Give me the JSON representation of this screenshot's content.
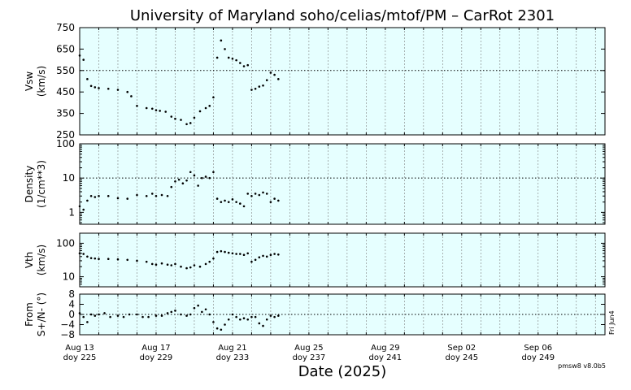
{
  "chart_data": {
    "type": "scatter",
    "title": "University of Maryland  soho/celias/mtof/PM – CarRot 2301",
    "xlabel": "Date (2025)",
    "footer_version": "pmsw8 v8.0b5",
    "side_note": "Fri Jun4",
    "x_range_day_of_year": [
      225,
      252.5
    ],
    "x_ticks": [
      {
        "doy": 225,
        "date": "Aug 13",
        "doy_label": "doy 225"
      },
      {
        "doy": 229,
        "date": "Aug 17",
        "doy_label": "doy 229"
      },
      {
        "doy": 233,
        "date": "Aug 21",
        "doy_label": "doy 233"
      },
      {
        "doy": 237,
        "date": "Aug 25",
        "doy_label": "doy 237"
      },
      {
        "doy": 241,
        "date": "Aug 29",
        "doy_label": "doy 241"
      },
      {
        "doy": 245,
        "date": "Sep 02",
        "doy_label": "doy 245"
      },
      {
        "doy": 249,
        "date": "Sep 06",
        "doy_label": "doy 249"
      }
    ],
    "panels": [
      {
        "key": "vsw",
        "ylabel": [
          "Vsw",
          "(km/s)"
        ],
        "scale": "linear",
        "ylim": [
          250,
          750
        ],
        "yticks": [
          250,
          350,
          450,
          550,
          650,
          750
        ],
        "ytick_labels": [
          "250",
          "350",
          "450",
          "550",
          "650",
          "750"
        ],
        "reference_line": 550,
        "series": [
          {
            "doy": [
              225.0,
              225.2,
              225.4,
              225.6,
              225.8,
              226.0,
              226.5,
              227.0,
              227.5,
              227.7,
              228.0,
              228.5,
              228.8,
              229.0,
              229.2,
              229.5,
              229.8,
              230.0,
              230.3,
              230.6,
              230.8,
              231.0,
              231.3,
              231.6,
              231.8,
              232.0,
              232.2,
              232.4,
              232.6,
              232.8,
              233.0,
              233.2,
              233.4,
              233.6,
              233.8,
              234.0,
              234.2,
              234.4,
              234.6,
              234.8,
              235.0,
              235.2,
              235.4
            ],
            "value": [
              620,
              600,
              510,
              478,
              472,
              468,
              465,
              460,
              450,
              430,
              385,
              375,
              372,
              365,
              362,
              358,
              335,
              325,
              320,
              300,
              305,
              330,
              360,
              375,
              385,
              425,
              610,
              690,
              650,
              610,
              605,
              598,
              585,
              570,
              575,
              460,
              465,
              475,
              480,
              505,
              540,
              530,
              510
            ]
          }
        ]
      },
      {
        "key": "density",
        "ylabel": [
          "Density",
          "(1/cm**3)"
        ],
        "scale": "log",
        "ylim": [
          0.45,
          100
        ],
        "yticks": [
          1,
          10,
          100
        ],
        "ytick_labels": [
          "1",
          "10",
          "100"
        ],
        "reference_line": 10,
        "series": [
          {
            "doy": [
              225.0,
              225.2,
              225.4,
              225.6,
              225.8,
              226.0,
              226.5,
              227.0,
              227.5,
              228.0,
              228.5,
              228.8,
              229.0,
              229.3,
              229.6,
              229.8,
              230.0,
              230.2,
              230.4,
              230.6,
              230.8,
              231.0,
              231.2,
              231.4,
              231.6,
              231.8,
              232.0,
              232.2,
              232.4,
              232.6,
              232.8,
              233.0,
              233.2,
              233.4,
              233.6,
              233.8,
              234.0,
              234.2,
              234.4,
              234.6,
              234.8,
              235.0,
              235.2,
              235.4
            ],
            "value": [
              1.5,
              1.2,
              2.2,
              3.0,
              2.8,
              3.0,
              3.0,
              2.6,
              2.5,
              3.2,
              3.0,
              3.5,
              3.0,
              3.2,
              3.0,
              5.5,
              8.0,
              9.0,
              7.0,
              8.5,
              15.0,
              12.0,
              6.0,
              10.0,
              11.0,
              10.0,
              15.0,
              2.5,
              2.0,
              2.2,
              2.0,
              2.4,
              2.0,
              1.8,
              1.5,
              3.5,
              3.0,
              3.5,
              3.2,
              3.8,
              3.5,
              2.0,
              2.5,
              2.2
            ]
          }
        ]
      },
      {
        "key": "vth",
        "ylabel": [
          "Vth",
          "(km/s)"
        ],
        "scale": "log",
        "ylim": [
          5,
          200
        ],
        "yticks": [
          10,
          100
        ],
        "ytick_labels": [
          "10",
          "100"
        ],
        "reference_line": null,
        "series": [
          {
            "doy": [
              225.0,
              225.2,
              225.4,
              225.6,
              225.8,
              226.0,
              226.5,
              227.0,
              227.5,
              228.0,
              228.5,
              228.8,
              229.0,
              229.3,
              229.6,
              229.8,
              230.0,
              230.3,
              230.6,
              230.8,
              231.0,
              231.3,
              231.6,
              231.8,
              232.0,
              232.2,
              232.4,
              232.6,
              232.8,
              233.0,
              233.2,
              233.4,
              233.6,
              233.8,
              234.0,
              234.2,
              234.4,
              234.6,
              234.8,
              235.0,
              235.2,
              235.4
            ],
            "value": [
              50,
              48,
              40,
              36,
              35,
              34,
              34,
              33,
              32,
              30,
              28,
              24,
              23,
              25,
              23,
              22,
              24,
              20,
              18,
              19,
              22,
              20,
              24,
              28,
              35,
              55,
              58,
              55,
              52,
              50,
              48,
              48,
              45,
              50,
              28,
              32,
              38,
              42,
              40,
              45,
              48,
              46
            ]
          }
        ]
      },
      {
        "key": "from",
        "ylabel": [
          "From",
          "S+/N- (°)"
        ],
        "scale": "linear",
        "ylim": [
          -8,
          8
        ],
        "yticks": [
          -8,
          -4,
          0,
          4,
          8
        ],
        "ytick_labels": [
          "−8",
          "−4",
          "0",
          "4",
          "8"
        ],
        "reference_line": 0,
        "series": [
          {
            "doy": [
              225.0,
              225.2,
              225.4,
              225.6,
              225.8,
              226.0,
              226.3,
              226.6,
              227.0,
              227.3,
              227.6,
              228.0,
              228.3,
              228.6,
              229.0,
              229.3,
              229.6,
              229.8,
              230.0,
              230.3,
              230.6,
              230.8,
              231.0,
              231.2,
              231.4,
              231.6,
              231.8,
              232.0,
              232.2,
              232.4,
              232.6,
              232.8,
              233.0,
              233.2,
              233.4,
              233.6,
              233.8,
              234.0,
              234.2,
              234.4,
              234.6,
              234.8,
              235.0,
              235.2,
              235.4
            ],
            "value": [
              0.5,
              -1.0,
              -3.0,
              0.0,
              -0.5,
              0.0,
              0.5,
              -1.0,
              -0.5,
              -1.0,
              0.0,
              0.0,
              -1.0,
              -1.0,
              -0.5,
              -0.5,
              0.5,
              1.0,
              1.5,
              0.0,
              -0.5,
              0.0,
              2.5,
              3.5,
              1.0,
              2.0,
              0.0,
              -3.0,
              -5.5,
              -6.0,
              -4.0,
              -2.0,
              0.0,
              -1.0,
              -2.0,
              -1.5,
              -2.0,
              -1.0,
              -1.0,
              -3.5,
              -4.5,
              -2.0,
              -0.5,
              -1.0,
              -0.5
            ]
          }
        ]
      }
    ]
  }
}
